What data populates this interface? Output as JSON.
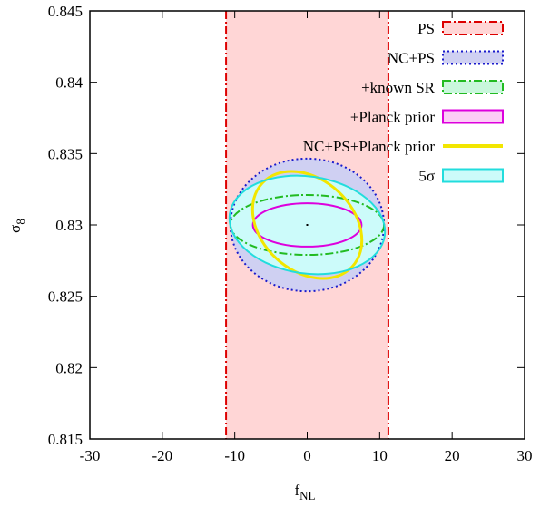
{
  "chart_data": {
    "type": "contour",
    "xlabel": "f",
    "xlabel_sub": "NL",
    "ylabel": "σ",
    "ylabel_sub": "8",
    "xlim": [
      -30,
      30
    ],
    "ylim": [
      0.815,
      0.845
    ],
    "x_ticks": [
      -30,
      -20,
      -10,
      0,
      10,
      20,
      30
    ],
    "x_tick_labels": [
      "-30",
      "-20",
      "-10",
      "0",
      "10",
      "20",
      "30"
    ],
    "y_ticks": [
      0.815,
      0.82,
      0.825,
      0.83,
      0.835,
      0.84,
      0.845
    ],
    "y_tick_labels": [
      "0.815",
      "0.82",
      "0.825",
      "0.83",
      "0.835",
      "0.84",
      "0.845"
    ],
    "legend_position": "top-right",
    "fiducial": {
      "x": 0,
      "y": 0.83
    },
    "series": [
      {
        "name": "PS",
        "shape": "band",
        "xmin": -11.2,
        "xmax": 11.2,
        "color": "#dd0000",
        "fill": "#ffd6d6",
        "dash": "dashdot"
      },
      {
        "name": "NC+PS",
        "shape": "ellipse",
        "cx": 0,
        "cy": 0.83,
        "rx": 10.6,
        "ry": 0.00465,
        "angle": 0,
        "color": "#1a1acc",
        "fill": "#cfd0f2",
        "dash": "dotted"
      },
      {
        "name": "+known SR",
        "shape": "ellipse",
        "cx": 0,
        "cy": 0.83,
        "rx": 10.6,
        "ry": 0.0021,
        "angle": 0,
        "color": "#22bb22",
        "fill": "#c9f7dc",
        "dash": "dashdot"
      },
      {
        "name": "+Planck prior",
        "shape": "ellipse",
        "cx": 0,
        "cy": 0.83,
        "rx": 7.5,
        "ry": 0.00152,
        "angle": 0,
        "color": "#dd00dd",
        "fill": "#fccdf6",
        "dash": "solid"
      },
      {
        "name": "NC+PS+Planck prior",
        "shape": "ellipse",
        "cx": 0,
        "cy": 0.83,
        "rx": 6.3,
        "ry": 0.0043,
        "angle": -47,
        "color": "#f2e600",
        "fill": "none",
        "dash": "solid"
      },
      {
        "name": "5σ",
        "shape": "ellipse",
        "cx": 0,
        "cy": 0.83,
        "rx": 10.8,
        "ry": 0.0034,
        "angle": 8,
        "color": "#22dddd",
        "fill": "#ccfbfa",
        "dash": "solid"
      }
    ]
  }
}
